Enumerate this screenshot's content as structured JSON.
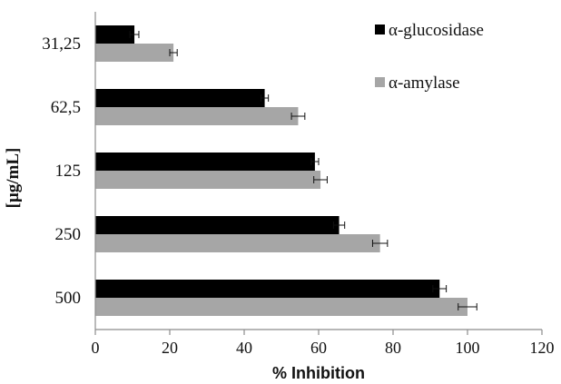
{
  "chart_data": {
    "type": "bar",
    "orientation": "horizontal",
    "categories": [
      "31,25",
      "62,5",
      "125",
      "250",
      "500"
    ],
    "series": [
      {
        "name": "α-glucosidase",
        "color": "#000000",
        "values": [
          10.5,
          45.5,
          59,
          65.5,
          92.5
        ],
        "errors": [
          1.2,
          1.0,
          1.0,
          1.5,
          1.8
        ]
      },
      {
        "name": "α-amylase",
        "color": "#a6a6a6",
        "values": [
          21,
          54.5,
          60.5,
          76.5,
          100
        ],
        "errors": [
          1.0,
          1.8,
          1.8,
          2.0,
          2.5
        ]
      }
    ],
    "xlabel": "% Inhibition",
    "ylabel": "[μg/mL]",
    "xlim": [
      0,
      120
    ],
    "xticks": [
      "0",
      "20",
      "40",
      "60",
      "80",
      "100",
      "120"
    ],
    "grid": false,
    "legend_position": "top-right"
  }
}
